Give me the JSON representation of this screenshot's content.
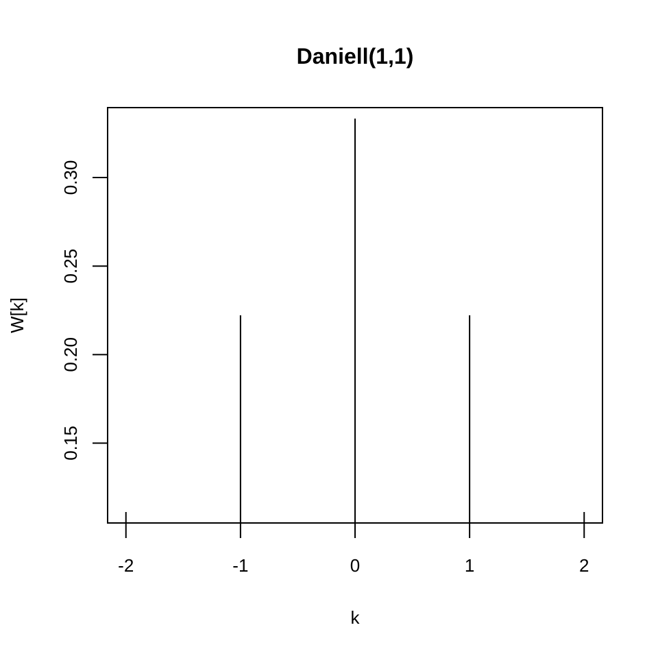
{
  "chart_data": {
    "type": "bar",
    "title": "Daniell(1,1)",
    "xlabel": "k",
    "ylabel": "W[k]",
    "x": [
      -2,
      -1,
      0,
      1,
      2
    ],
    "values": [
      0.1111,
      0.2222,
      0.3333,
      0.2222,
      0.1111
    ],
    "xlim": [
      -2.16,
      2.16
    ],
    "ylim": [
      0.1049,
      0.3395
    ],
    "xticks": [
      -2,
      -1,
      0,
      1,
      2
    ],
    "xtick_labels": [
      "-2",
      "-1",
      "0",
      "1",
      "2"
    ],
    "yticks": [
      0.15,
      0.2,
      0.25,
      0.3
    ],
    "ytick_labels": [
      "0.15",
      "0.20",
      "0.25",
      "0.30"
    ],
    "grid": false,
    "color": "#000000"
  }
}
